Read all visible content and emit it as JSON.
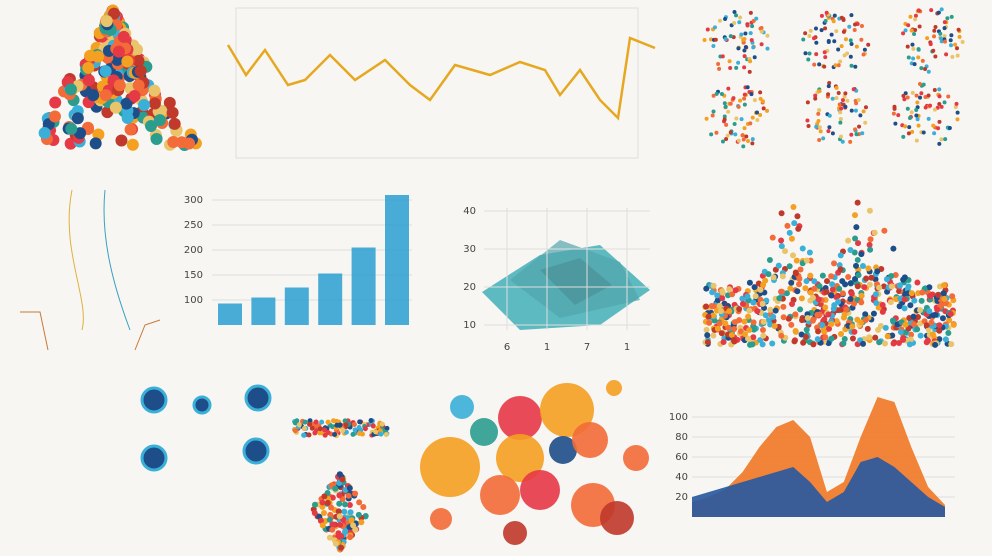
{
  "chart_data": [
    {
      "type": "bar",
      "values": [
        93,
        105,
        125,
        153,
        205,
        310
      ],
      "color": "#2a9fd0",
      "ylim": [
        50,
        310
      ],
      "yticks": [
        300,
        250,
        200,
        150,
        100
      ],
      "grid": true
    },
    {
      "type": "surface",
      "categories": [
        "6",
        "1",
        "7",
        "1"
      ],
      "ylim": [
        5,
        40
      ],
      "yticks": [
        40,
        30,
        20,
        10
      ],
      "grid": true
    },
    {
      "type": "area",
      "ylim": [
        0,
        125
      ],
      "yticks": [
        100,
        80,
        60,
        40,
        20
      ],
      "grid": true,
      "series": [
        {
          "color": "#f07a28",
          "values": [
            15,
            20,
            28,
            45,
            70,
            90,
            97,
            80,
            25,
            35,
            80,
            120,
            115,
            70,
            30,
            12
          ]
        },
        {
          "color": "#2a5aa0",
          "values": [
            20,
            25,
            30,
            35,
            40,
            45,
            50,
            35,
            15,
            25,
            55,
            60,
            50,
            35,
            20,
            10
          ]
        }
      ]
    }
  ]
}
